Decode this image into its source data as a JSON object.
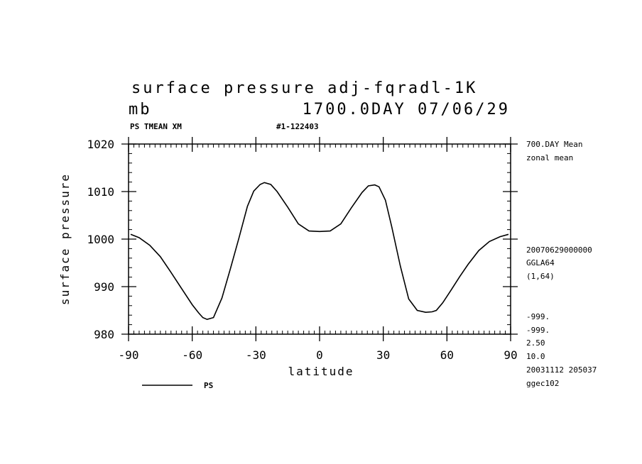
{
  "header": {
    "title": "surface pressure adj-fqradl-1K",
    "units": "mb",
    "time_label": "1700.0DAY 07/06/29",
    "field_label": "PS TMEAN XM",
    "run_label": "#1-122403"
  },
  "side_info": {
    "mean_label": "700.DAY Mean",
    "zonal_label": "zonal mean",
    "date_code": "20070629000000",
    "grid": "GGLA64",
    "indices": "(1,64)",
    "missing_1": "-999.",
    "missing_2": "-999.",
    "val_a": "2.50",
    "val_b": "10.0",
    "timestamp": "20031112 205037",
    "machine": "ggec102"
  },
  "legend": {
    "series_label": "PS"
  },
  "chart_data": {
    "type": "line",
    "xlabel": "latitude",
    "ylabel": "surface pressure",
    "xlim": [
      -90,
      90
    ],
    "ylim": [
      980,
      1020
    ],
    "xticks": [
      -90,
      -60,
      -30,
      0,
      30,
      60,
      90
    ],
    "yticks": [
      980,
      990,
      1000,
      1010,
      1020
    ],
    "x_minor_step": 2.5,
    "y_minor_step": 2,
    "grid": false,
    "series": [
      {
        "name": "PS",
        "color": "#000000",
        "x": [
          -89,
          -85,
          -80,
          -75,
          -70,
          -65,
          -60,
          -57,
          -55,
          -53,
          -50,
          -46,
          -42,
          -38,
          -34,
          -31,
          -28,
          -26,
          -23,
          -20,
          -15,
          -10,
          -5,
          0,
          5,
          10,
          15,
          20,
          23,
          26,
          28,
          31,
          34,
          38,
          42,
          46,
          50,
          53,
          55,
          58,
          62,
          66,
          70,
          75,
          80,
          85,
          89
        ],
        "y": [
          1001,
          1000.3,
          998.7,
          996.3,
          993,
          989.6,
          986.2,
          984.5,
          983.5,
          983.1,
          983.5,
          987.6,
          993.8,
          1000.2,
          1006.9,
          1010.1,
          1011.5,
          1011.9,
          1011.5,
          1010,
          1006.7,
          1003.2,
          1001.7,
          1001.6,
          1001.7,
          1003.2,
          1006.6,
          1009.8,
          1011.2,
          1011.4,
          1011.0,
          1008.2,
          1002.6,
          994.4,
          987.4,
          985.0,
          984.6,
          984.7,
          985.0,
          986.6,
          989.3,
          992.1,
          994.7,
          997.6,
          999.5,
          1000.5,
          1001
        ]
      }
    ]
  }
}
